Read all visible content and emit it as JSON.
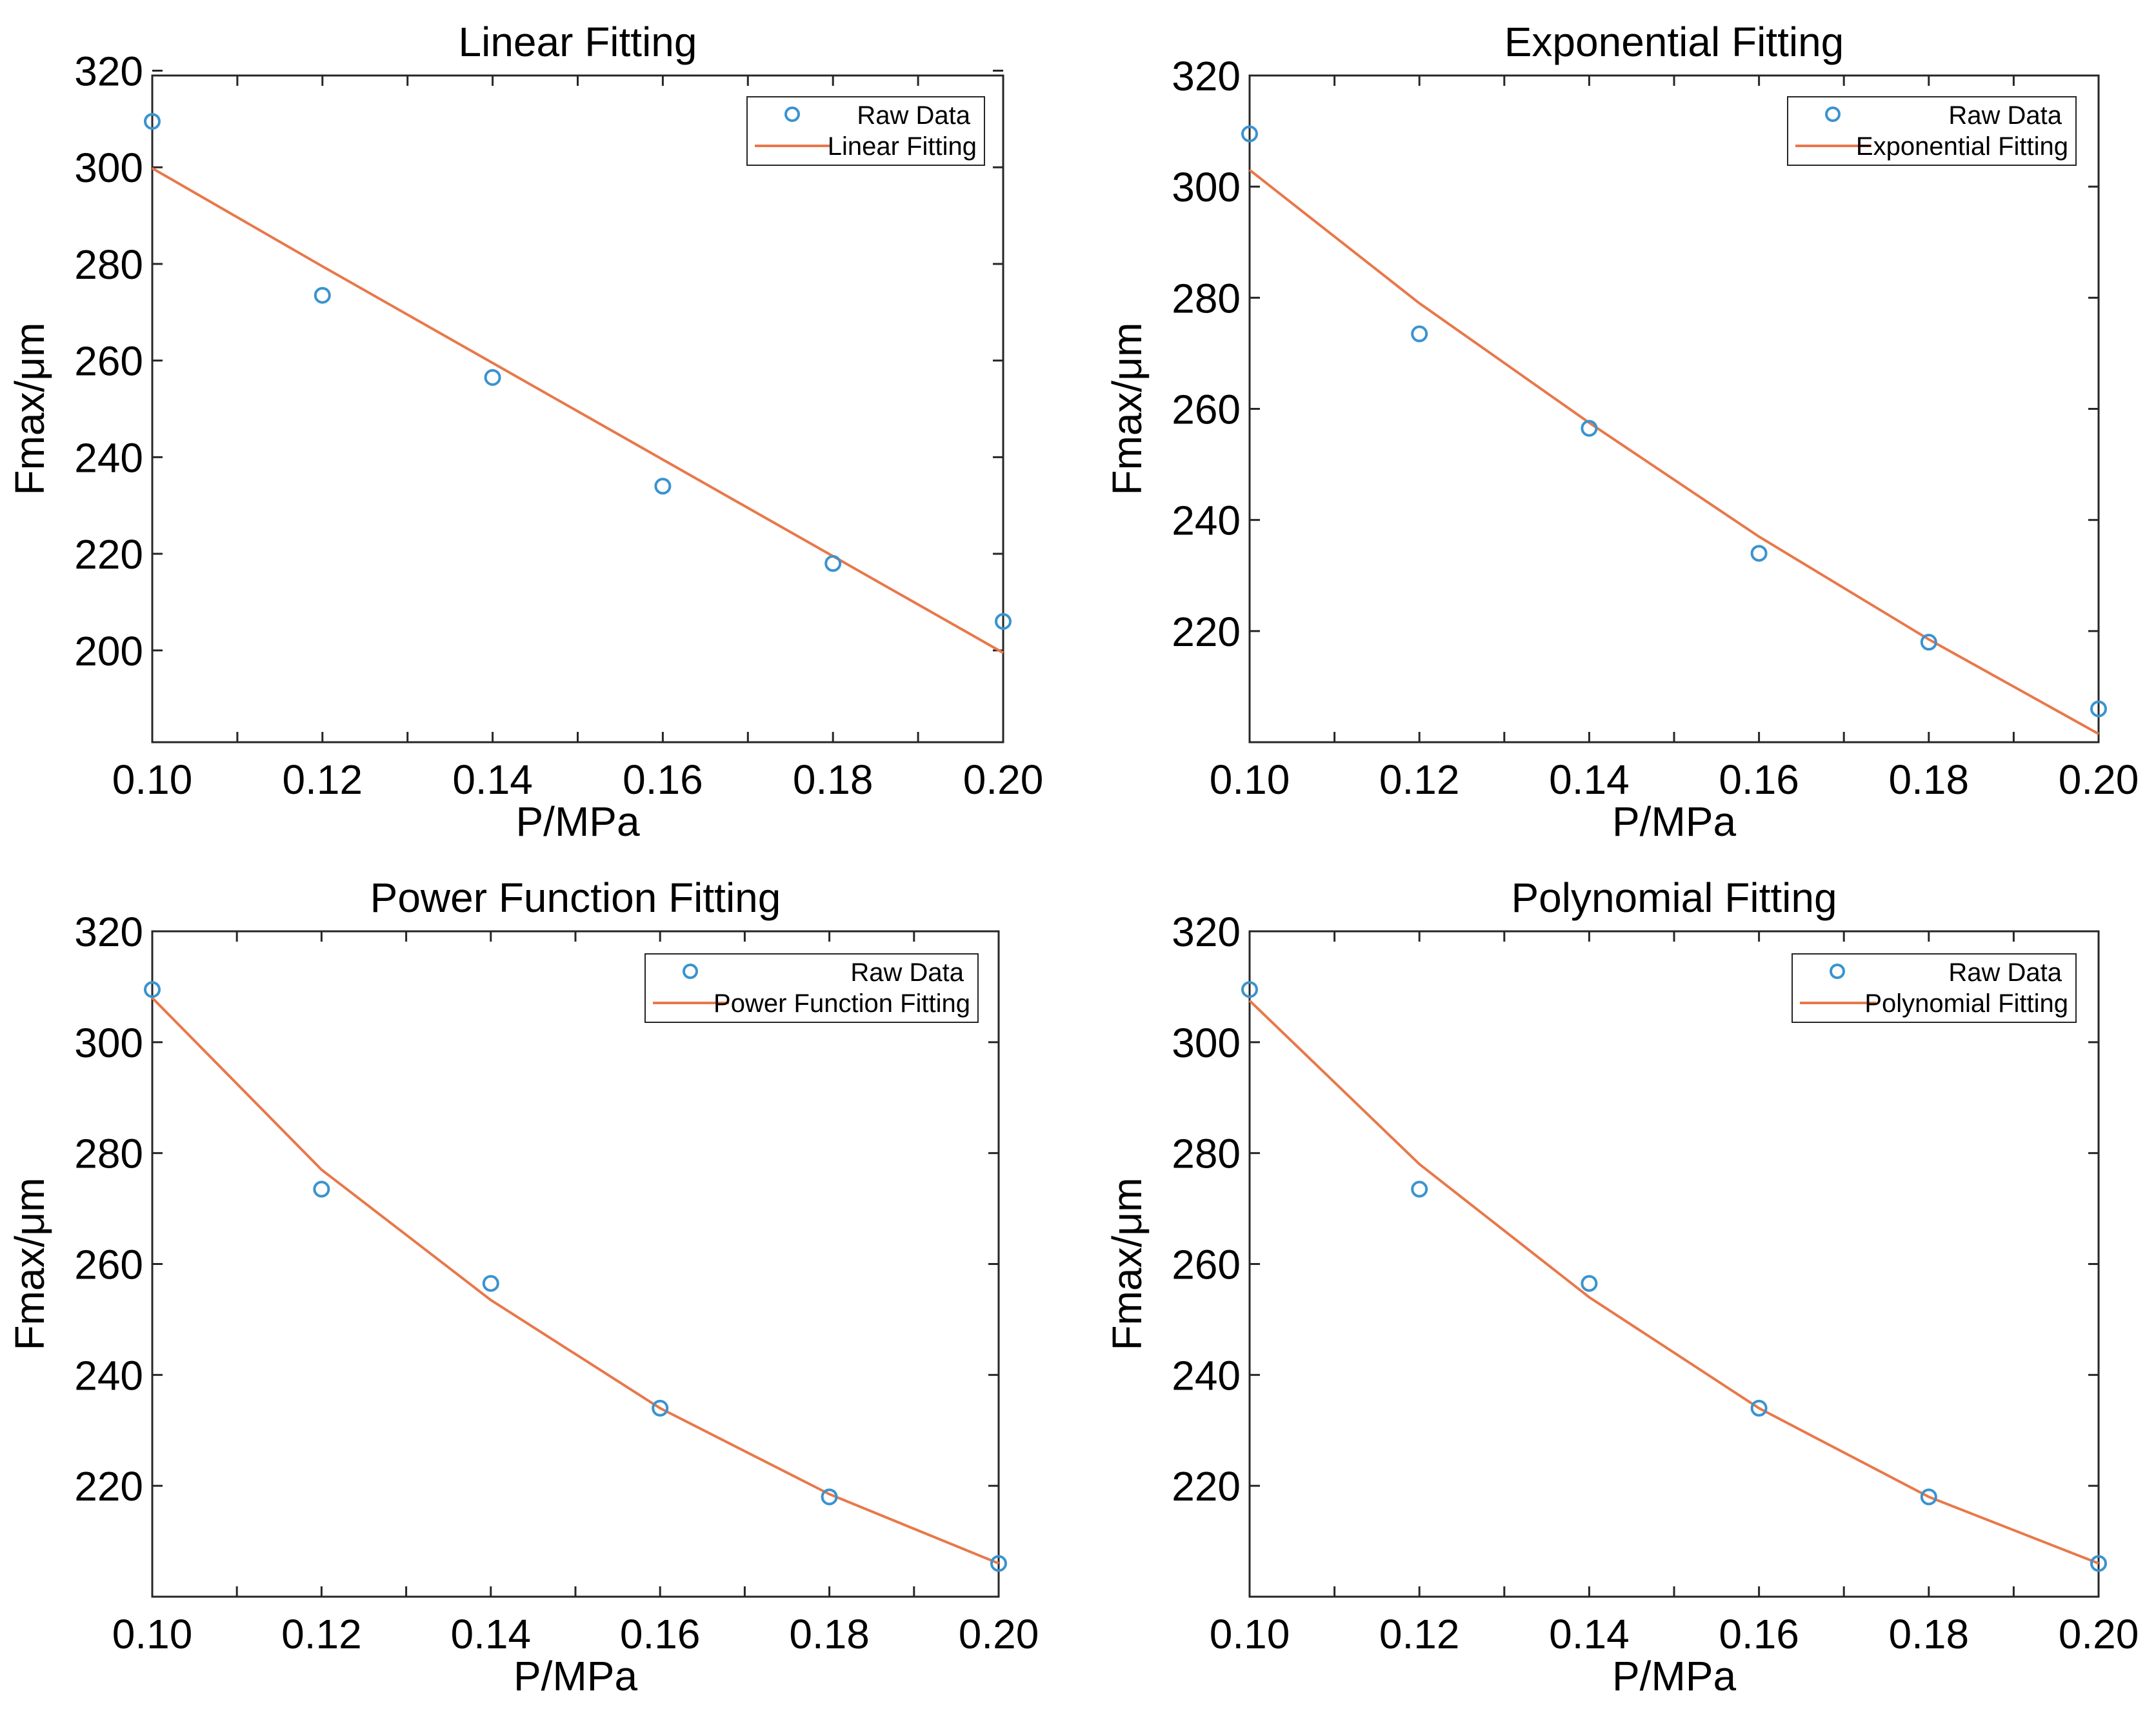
{
  "figure": {
    "background": "#ffffff"
  },
  "colors": {
    "raw": "#3a93cf",
    "fit": "#e8784a",
    "axis": "#262626"
  },
  "chart_data": [
    {
      "type": "line",
      "title": "Linear Fitting",
      "xlabel": "P/MPa",
      "ylabel": "Fmax/μm",
      "xlim": [
        0.1,
        0.2
      ],
      "ylim": [
        181,
        319
      ],
      "xticks": [
        0.1,
        0.12,
        0.14,
        0.16,
        0.18,
        0.2
      ],
      "xtick_labels": [
        "0.10",
        "0.12",
        "0.14",
        "0.16",
        "0.18",
        "0.20"
      ],
      "yticks": [
        200,
        220,
        240,
        260,
        280,
        300,
        320
      ],
      "ytick_labels": [
        "200",
        "220",
        "240",
        "260",
        "280",
        "300",
        "320"
      ],
      "legend": {
        "position": "top-right",
        "entries": [
          "Raw Data",
          "Linear Fitting"
        ]
      },
      "series": [
        {
          "name": "Raw Data",
          "kind": "scatter",
          "x": [
            0.1,
            0.12,
            0.14,
            0.16,
            0.18,
            0.2
          ],
          "y": [
            309.5,
            273.5,
            256.5,
            234.0,
            218.0,
            206.0
          ]
        },
        {
          "name": "Linear Fitting",
          "kind": "line",
          "x": [
            0.1,
            0.12,
            0.14,
            0.16,
            0.18,
            0.2
          ],
          "y": [
            299.8,
            279.5,
            259.5,
            239.5,
            219.5,
            199.5
          ]
        }
      ]
    },
    {
      "type": "line",
      "title": "Exponential Fitting",
      "xlabel": "P/MPa",
      "ylabel": "Fmax/μm",
      "xlim": [
        0.1,
        0.2
      ],
      "ylim": [
        200,
        320
      ],
      "xticks": [
        0.1,
        0.12,
        0.14,
        0.16,
        0.18,
        0.2
      ],
      "xtick_labels": [
        "0.10",
        "0.12",
        "0.14",
        "0.16",
        "0.18",
        "0.20"
      ],
      "yticks": [
        220,
        240,
        260,
        280,
        300,
        320
      ],
      "ytick_labels": [
        "220",
        "240",
        "260",
        "280",
        "300",
        "320"
      ],
      "legend": {
        "position": "top-right",
        "entries": [
          "Raw Data",
          "Exponential Fitting"
        ]
      },
      "series": [
        {
          "name": "Raw Data",
          "kind": "scatter",
          "x": [
            0.1,
            0.12,
            0.14,
            0.16,
            0.18,
            0.2
          ],
          "y": [
            309.5,
            273.5,
            256.5,
            234.0,
            218.0,
            206.0
          ]
        },
        {
          "name": "Exponential Fitting",
          "kind": "line",
          "x": [
            0.1,
            0.12,
            0.14,
            0.16,
            0.18,
            0.2
          ],
          "y": [
            303.0,
            279.0,
            257.5,
            237.0,
            218.5,
            201.5
          ]
        }
      ]
    },
    {
      "type": "line",
      "title": "Power Function Fitting",
      "xlabel": "P/MPa",
      "ylabel": "Fmax/μm",
      "xlim": [
        0.1,
        0.2
      ],
      "ylim": [
        200,
        320
      ],
      "xticks": [
        0.1,
        0.12,
        0.14,
        0.16,
        0.18,
        0.2
      ],
      "xtick_labels": [
        "0.10",
        "0.12",
        "0.14",
        "0.16",
        "0.18",
        "0.20"
      ],
      "yticks": [
        220,
        240,
        260,
        280,
        300,
        320
      ],
      "ytick_labels": [
        "220",
        "240",
        "260",
        "280",
        "300",
        "320"
      ],
      "legend": {
        "position": "top-right",
        "entries": [
          "Raw Data",
          "Power Function Fitting"
        ]
      },
      "series": [
        {
          "name": "Raw Data",
          "kind": "scatter",
          "x": [
            0.1,
            0.12,
            0.14,
            0.16,
            0.18,
            0.2
          ],
          "y": [
            309.5,
            273.5,
            256.5,
            234.0,
            218.0,
            206.0
          ]
        },
        {
          "name": "Power Function Fitting",
          "kind": "line",
          "x": [
            0.1,
            0.12,
            0.14,
            0.16,
            0.18,
            0.2
          ],
          "y": [
            308.0,
            277.0,
            253.5,
            234.0,
            218.5,
            206.0
          ]
        }
      ]
    },
    {
      "type": "line",
      "title": "Polynomial Fitting",
      "xlabel": "P/MPa",
      "ylabel": "Fmax/μm",
      "xlim": [
        0.1,
        0.2
      ],
      "ylim": [
        200,
        320
      ],
      "xticks": [
        0.1,
        0.12,
        0.14,
        0.16,
        0.18,
        0.2
      ],
      "xtick_labels": [
        "0.10",
        "0.12",
        "0.14",
        "0.16",
        "0.18",
        "0.20"
      ],
      "yticks": [
        220,
        240,
        260,
        280,
        300,
        320
      ],
      "ytick_labels": [
        "220",
        "240",
        "260",
        "280",
        "300",
        "320"
      ],
      "legend": {
        "position": "top-right",
        "entries": [
          "Raw Data",
          "Polynomial Fitting"
        ]
      },
      "series": [
        {
          "name": "Raw Data",
          "kind": "scatter",
          "x": [
            0.1,
            0.12,
            0.14,
            0.16,
            0.18,
            0.2
          ],
          "y": [
            309.5,
            273.5,
            256.5,
            234.0,
            218.0,
            206.0
          ]
        },
        {
          "name": "Polynomial Fitting",
          "kind": "line",
          "x": [
            0.1,
            0.12,
            0.14,
            0.16,
            0.18,
            0.2
          ],
          "y": [
            307.5,
            278.0,
            254.0,
            234.0,
            218.0,
            206.0
          ]
        }
      ]
    }
  ]
}
